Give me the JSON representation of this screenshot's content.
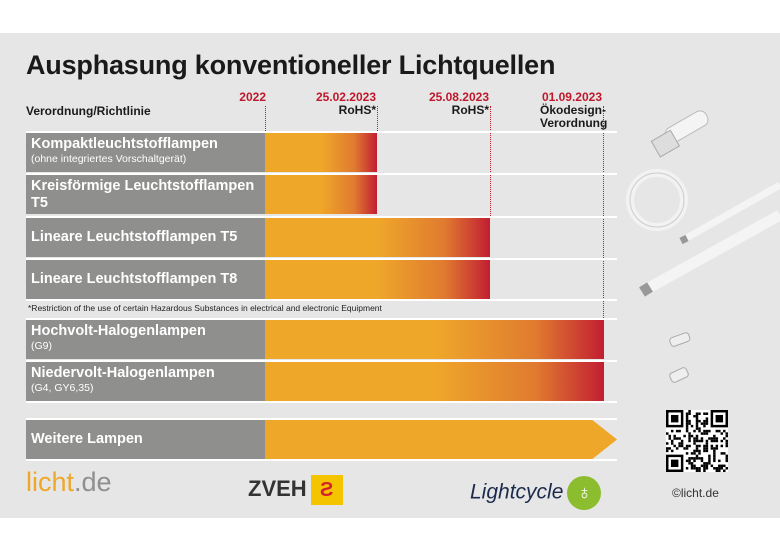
{
  "title": "Ausphasung konventioneller Lichtquellen",
  "header_label": "Verordnung/Richtlinie",
  "milestones": [
    {
      "date": "2022",
      "label": ""
    },
    {
      "date": "25.02.2023",
      "label": "RoHS*"
    },
    {
      "date": "25.08.2023",
      "label": "RoHS*"
    },
    {
      "date": "01.09.2023",
      "label": "Ökodesign-Verordnung"
    }
  ],
  "rows": [
    {
      "name": "Kompaktleuchtstofflampen",
      "detail": "(ohne integriertes Vorschaltgerät)",
      "ends": "25.02.2023"
    },
    {
      "name": "Kreisförmige Leuchtstofflampen T5",
      "detail": "",
      "ends": "25.02.2023"
    },
    {
      "name": "Lineare Leuchtstofflampen T5",
      "detail": "",
      "ends": "25.08.2023"
    },
    {
      "name": "Lineare Leuchtstofflampen T8",
      "detail": "",
      "ends": "25.08.2023"
    },
    {
      "name": "Hochvolt-Halogenlampen",
      "detail": "(G9)",
      "ends": "01.09.2023"
    },
    {
      "name": "Niedervolt-Halogenlampen",
      "detail": "(G4, GY6,35)",
      "ends": "01.09.2023"
    },
    {
      "name": "Weitere Lampen",
      "detail": "",
      "ends": "ongoing"
    }
  ],
  "footnote": "*Restriction of the use of certain Hazardous Substances in electrical and electronic Equipment",
  "logos": {
    "licht_a": "licht",
    "licht_b": ".de",
    "zveh": "ZVEH",
    "lightcycle": "Lightcycle"
  },
  "copyright": "©licht.de",
  "colors": {
    "label_bg": "#8f8f8e",
    "bar_start": "#efa72a",
    "bar_end": "#c21e32",
    "date_red": "#c0172a"
  }
}
